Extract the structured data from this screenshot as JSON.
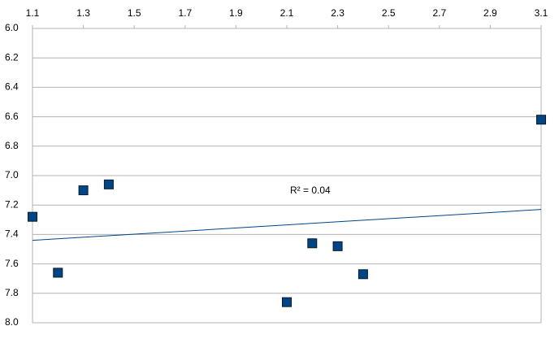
{
  "chart_data": {
    "type": "scatter",
    "x": [
      1.1,
      1.2,
      1.3,
      1.4,
      2.1,
      2.2,
      2.3,
      2.4,
      3.1
    ],
    "series": [
      {
        "color": "#004586",
        "values": [
          7.28,
          7.66,
          7.1,
          7.06,
          7.86,
          7.46,
          7.48,
          7.67,
          6.62
        ]
      }
    ],
    "trendline": {
      "x": [
        1.1,
        3.1
      ],
      "values": [
        7.44,
        7.23
      ],
      "color": "#004586"
    },
    "annotation": "R² = 0.04",
    "xlim": [
      1.1,
      3.1
    ],
    "xticks": [
      1.1,
      1.3,
      1.5,
      1.7,
      1.9,
      2.1,
      2.3,
      2.5,
      2.7,
      2.9,
      3.1
    ],
    "x_axis_position": "top",
    "ylim": [
      6,
      8
    ],
    "y_inverted": true,
    "yticks": [
      {
        "value": 6,
        "label": "6.0"
      },
      6.2,
      6.4,
      6.6,
      6.8,
      {
        "value": 7,
        "label": "7.0"
      },
      7.2,
      7.4,
      7.6,
      7.8,
      {
        "value": 8,
        "label": "8.0"
      }
    ],
    "grid": true
  }
}
